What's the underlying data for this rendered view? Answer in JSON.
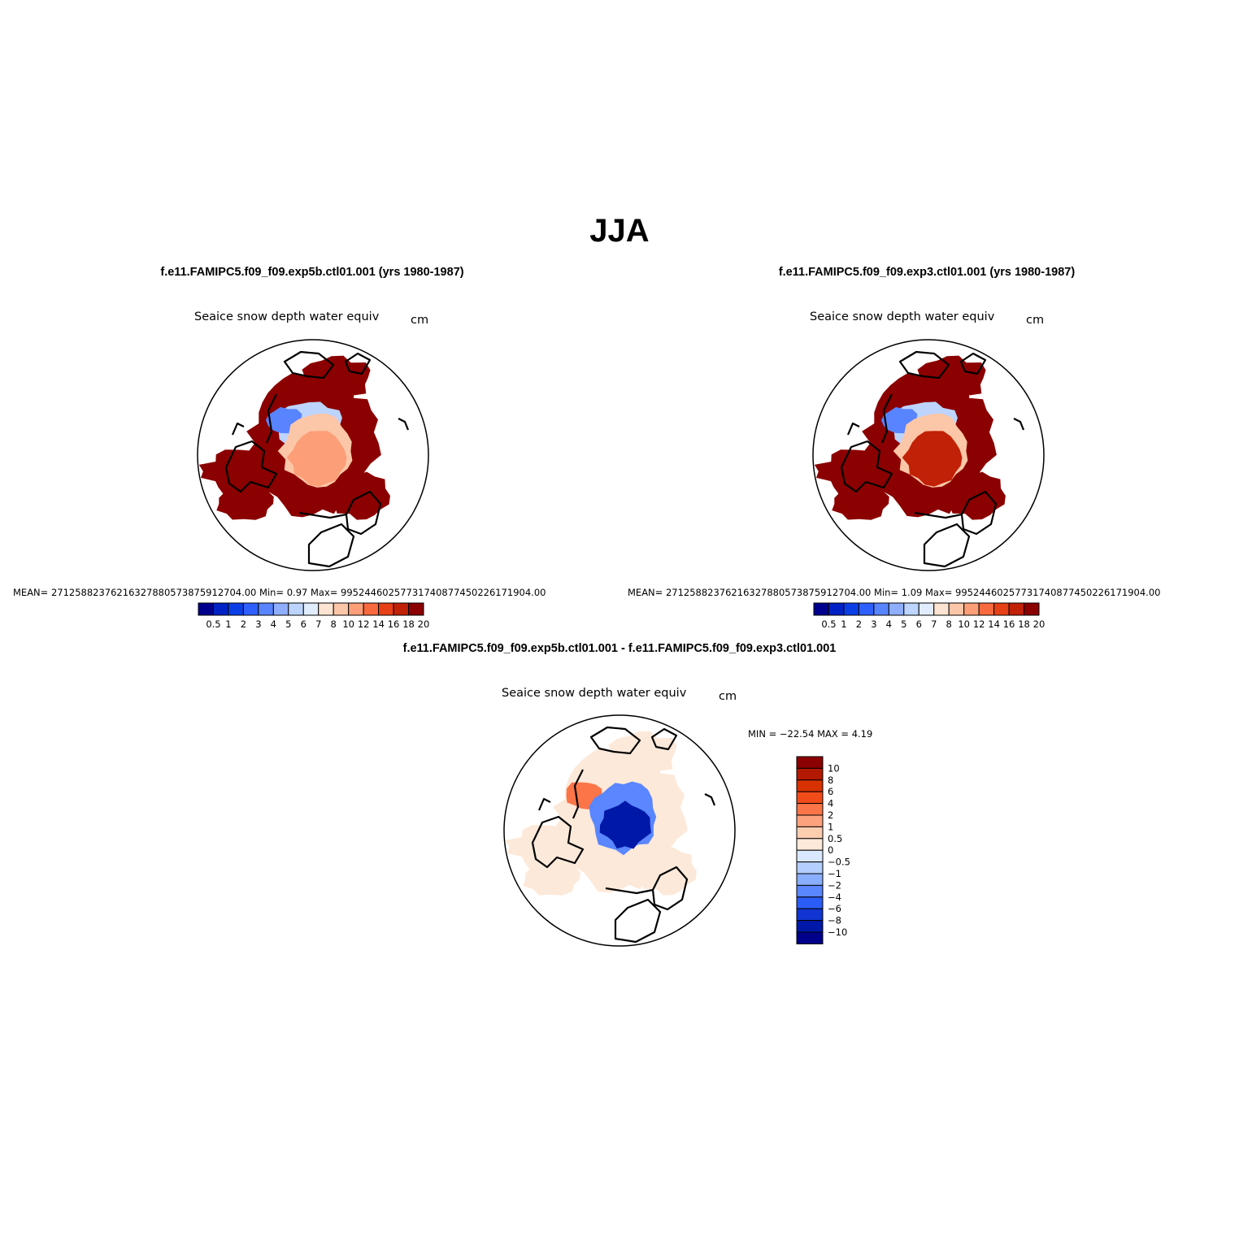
{
  "title": "JJA",
  "panels": [
    {
      "id": "panel-exp5b",
      "case_title": "f.e11.FAMIPC5.f09_f09.exp5b.ctl01.001 (yrs 1980-1987)",
      "variable": "Seaice snow depth water equiv",
      "units": "cm",
      "stats_line": "MEAN= 27125882376216327880573875912704.00   Min=     0.97   Max= 99524460257731740877450226171904.00",
      "center_class": 10
    },
    {
      "id": "panel-exp3",
      "case_title": "f.e11.FAMIPC5.f09_f09.exp3.ctl01.001 (yrs 1980-1987)",
      "variable": "Seaice snow depth water equiv",
      "units": "cm",
      "stats_line": "MEAN= 27125882376216327880573875912704.00   Min=     1.09   Max= 99524460257731740877450226171904.00",
      "center_class": 13
    }
  ],
  "diff_panel": {
    "case_title": "f.e11.FAMIPC5.f09_f09.exp5b.ctl01.001 - f.e11.FAMIPC5.f09_f09.exp3.ctl01.001",
    "variable": "Seaice snow depth water equiv",
    "units": "cm",
    "stats_line": "MIN = −22.54 MAX =    4.19"
  },
  "colorbar_levels": [
    "0.5",
    "1",
    "2",
    "3",
    "4",
    "5",
    "6",
    "7",
    "8",
    "10",
    "12",
    "14",
    "16",
    "18",
    "20"
  ],
  "colorbar_colors": [
    "#00008f",
    "#0022c4",
    "#0b3fe6",
    "#2f5fff",
    "#5884ff",
    "#8faeff",
    "#bdd4ff",
    "#e1edff",
    "#fde4d2",
    "#fcc6a8",
    "#fc9e77",
    "#f8693e",
    "#e84016",
    "#c12106",
    "#8b0000"
  ],
  "diff_levels": [
    "10",
    "8",
    "6",
    "4",
    "2",
    "1",
    "0.5",
    "0",
    "−0.5",
    "−1",
    "−2",
    "−4",
    "−6",
    "−8",
    "−10"
  ],
  "diff_colors": [
    "#8b0000",
    "#b31800",
    "#d83200",
    "#f24b1a",
    "#fb7548",
    "#fda27d",
    "#fdcdb0",
    "#fde9d9",
    "#d9e8ff",
    "#b4cfff",
    "#8aaeff",
    "#5a86ff",
    "#2b5cf5",
    "#1035d2",
    "#0018a8",
    "#00008a"
  ],
  "color_notes": {
    "ice_edge": "#8b0000",
    "diff_ice": "#fde9d9",
    "land_outline": "#000000"
  }
}
